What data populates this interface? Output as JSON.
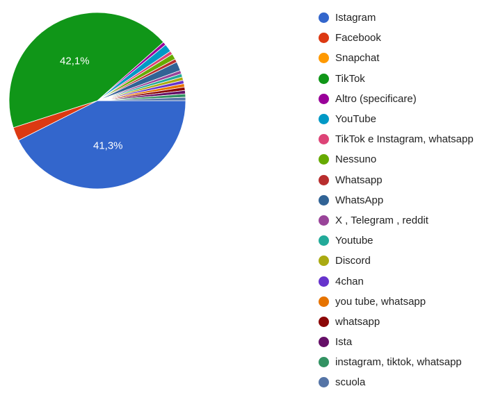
{
  "chart_data": {
    "type": "pie",
    "slices": [
      {
        "label": "Istagram",
        "value": 41.3,
        "color": "#3366cc",
        "display": "41,3%"
      },
      {
        "label": "Facebook",
        "value": 2.4,
        "color": "#dc3912"
      },
      {
        "label": "Snapchat",
        "value": 0.0,
        "color": "#ff9900"
      },
      {
        "label": "TikTok",
        "value": 42.1,
        "color": "#109618",
        "display": "42,1%"
      },
      {
        "label": "Altro (specificare)",
        "value": 0.6,
        "color": "#990099"
      },
      {
        "label": "YouTube",
        "value": 1.4,
        "color": "#0099c6"
      },
      {
        "label": "TikTok e Instagram, whatsapp",
        "value": 0.6,
        "color": "#dd4477"
      },
      {
        "label": "Nessuno",
        "value": 1.0,
        "color": "#66aa00"
      },
      {
        "label": "Whatsapp",
        "value": 0.6,
        "color": "#b82e2e"
      },
      {
        "label": "WhatsApp",
        "value": 1.6,
        "color": "#316395"
      },
      {
        "label": "X , Telegram , reddit",
        "value": 0.6,
        "color": "#994499"
      },
      {
        "label": "Youtube",
        "value": 0.6,
        "color": "#22aa99"
      },
      {
        "label": "Discord",
        "value": 0.6,
        "color": "#aaaa11"
      },
      {
        "label": "4chan",
        "value": 0.6,
        "color": "#6633cc"
      },
      {
        "label": "you tube, whatsapp",
        "value": 0.6,
        "color": "#e67300"
      },
      {
        "label": "whatsapp",
        "value": 0.6,
        "color": "#8b0707"
      },
      {
        "label": "Ista",
        "value": 0.6,
        "color": "#651067"
      },
      {
        "label": "instagram, tiktok, whatsapp",
        "value": 0.6,
        "color": "#329262"
      },
      {
        "label": "scuola",
        "value": 0.6,
        "color": "#5574a6"
      }
    ],
    "legend_position": "right"
  }
}
